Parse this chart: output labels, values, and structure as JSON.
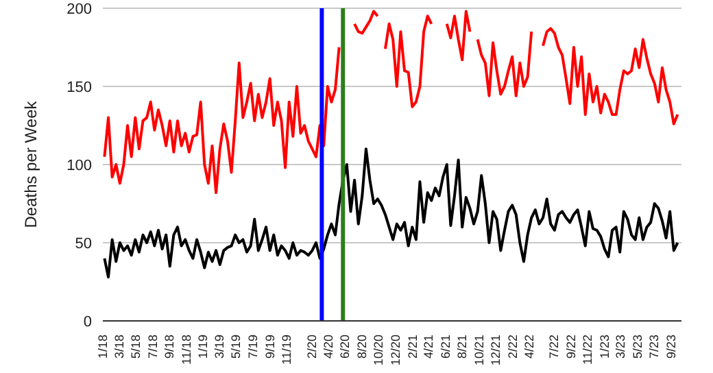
{
  "chart_data": {
    "type": "line",
    "ylabel": "Deaths per Week",
    "ylim": [
      0,
      200
    ],
    "yticks": [
      0,
      50,
      100,
      150,
      200
    ],
    "grid": "y",
    "marker": "none",
    "line_style": "solid",
    "xlim": [
      "2018-01-01",
      "2023-10-08"
    ],
    "xticks": [
      {
        "value": "2018-01-01",
        "label": "1/18"
      },
      {
        "value": "2018-03-01",
        "label": "3/18"
      },
      {
        "value": "2018-05-01",
        "label": "5/18"
      },
      {
        "value": "2018-07-01",
        "label": "7/18"
      },
      {
        "value": "2018-09-01",
        "label": "9/18"
      },
      {
        "value": "2018-11-01",
        "label": "11/18"
      },
      {
        "value": "2019-01-01",
        "label": "1/19"
      },
      {
        "value": "2019-03-01",
        "label": "3/19"
      },
      {
        "value": "2019-05-01",
        "label": "5/19"
      },
      {
        "value": "2019-07-01",
        "label": "7/19"
      },
      {
        "value": "2019-09-01",
        "label": "9/19"
      },
      {
        "value": "2019-11-01",
        "label": "11/19"
      },
      {
        "value": "2020-02-01",
        "label": "2/20"
      },
      {
        "value": "2020-04-01",
        "label": "4/20"
      },
      {
        "value": "2020-06-01",
        "label": "6/20"
      },
      {
        "value": "2020-08-01",
        "label": "8/20"
      },
      {
        "value": "2020-10-01",
        "label": "10/20"
      },
      {
        "value": "2020-12-01",
        "label": "12/20"
      },
      {
        "value": "2021-02-01",
        "label": "2/21"
      },
      {
        "value": "2021-04-01",
        "label": "4/21"
      },
      {
        "value": "2021-06-01",
        "label": "6/21"
      },
      {
        "value": "2021-08-01",
        "label": "8/21"
      },
      {
        "value": "2021-10-01",
        "label": "10/21"
      },
      {
        "value": "2021-12-01",
        "label": "12/21"
      },
      {
        "value": "2022-02-01",
        "label": "2/22"
      },
      {
        "value": "2022-04-01",
        "label": "4/22"
      },
      {
        "value": "2022-07-01",
        "label": "7/22"
      },
      {
        "value": "2022-09-01",
        "label": "9/22"
      },
      {
        "value": "2022-11-01",
        "label": "11/22"
      },
      {
        "value": "2023-01-01",
        "label": "1/23"
      },
      {
        "value": "2023-03-01",
        "label": "3/23"
      },
      {
        "value": "2023-05-01",
        "label": "5/23"
      },
      {
        "value": "2023-07-01",
        "label": "7/23"
      },
      {
        "value": "2023-09-01",
        "label": "9/23"
      }
    ],
    "x": [
      "2018-01-07",
      "2018-01-21",
      "2018-02-04",
      "2018-02-18",
      "2018-03-04",
      "2018-03-18",
      "2018-04-01",
      "2018-04-15",
      "2018-04-29",
      "2018-05-13",
      "2018-05-27",
      "2018-06-10",
      "2018-06-24",
      "2018-07-08",
      "2018-07-22",
      "2018-08-05",
      "2018-08-19",
      "2018-09-02",
      "2018-09-16",
      "2018-09-30",
      "2018-10-14",
      "2018-10-28",
      "2018-11-11",
      "2018-11-25",
      "2018-12-09",
      "2018-12-23",
      "2019-01-06",
      "2019-01-20",
      "2019-02-03",
      "2019-02-17",
      "2019-03-03",
      "2019-03-17",
      "2019-03-31",
      "2019-04-14",
      "2019-04-28",
      "2019-05-12",
      "2019-05-26",
      "2019-06-09",
      "2019-06-23",
      "2019-07-07",
      "2019-07-21",
      "2019-08-04",
      "2019-08-18",
      "2019-09-01",
      "2019-09-15",
      "2019-09-29",
      "2019-10-13",
      "2019-10-27",
      "2019-11-10",
      "2019-11-24",
      "2019-12-08",
      "2019-12-22",
      "2020-01-05",
      "2020-01-19",
      "2020-02-02",
      "2020-02-16",
      "2020-03-01",
      "2020-03-15",
      "2020-03-29",
      "2020-04-12",
      "2020-04-26",
      "2020-05-10",
      "2020-05-24",
      "2020-06-07",
      "2020-06-21",
      "2020-07-05",
      "2020-07-19",
      "2020-08-02",
      "2020-08-16",
      "2020-08-30",
      "2020-09-13",
      "2020-09-27",
      "2020-10-11",
      "2020-10-25",
      "2020-11-08",
      "2020-11-22",
      "2020-12-06",
      "2020-12-20",
      "2021-01-03",
      "2021-01-17",
      "2021-01-31",
      "2021-02-14",
      "2021-02-28",
      "2021-03-14",
      "2021-03-28",
      "2021-04-11",
      "2021-04-25",
      "2021-05-09",
      "2021-05-23",
      "2021-06-06",
      "2021-06-20",
      "2021-07-04",
      "2021-07-18",
      "2021-08-01",
      "2021-08-15",
      "2021-08-29",
      "2021-09-12",
      "2021-09-26",
      "2021-10-10",
      "2021-10-24",
      "2021-11-07",
      "2021-11-21",
      "2021-12-05",
      "2021-12-19",
      "2022-01-02",
      "2022-01-16",
      "2022-01-30",
      "2022-02-13",
      "2022-02-27",
      "2022-03-13",
      "2022-03-27",
      "2022-04-10",
      "2022-04-24",
      "2022-05-08",
      "2022-05-22",
      "2022-06-05",
      "2022-06-19",
      "2022-07-03",
      "2022-07-17",
      "2022-07-31",
      "2022-08-14",
      "2022-08-28",
      "2022-09-11",
      "2022-09-25",
      "2022-10-09",
      "2022-10-23",
      "2022-11-06",
      "2022-11-20",
      "2022-12-04",
      "2022-12-18",
      "2023-01-01",
      "2023-01-15",
      "2023-01-29",
      "2023-02-12",
      "2023-02-26",
      "2023-03-12",
      "2023-03-26",
      "2023-04-09",
      "2023-04-23",
      "2023-05-07",
      "2023-05-21",
      "2023-06-04",
      "2023-06-18",
      "2023-07-02",
      "2023-07-16",
      "2023-07-30",
      "2023-08-13",
      "2023-08-27",
      "2023-09-10",
      "2023-09-24"
    ],
    "series": [
      {
        "color": "#ff0000",
        "values": [
          105,
          130,
          92,
          100,
          88,
          100,
          125,
          105,
          130,
          110,
          128,
          130,
          140,
          122,
          135,
          125,
          112,
          128,
          108,
          128,
          112,
          120,
          108,
          118,
          119,
          140,
          100,
          88,
          112,
          82,
          110,
          126,
          115,
          95,
          128,
          165,
          130,
          140,
          152,
          128,
          145,
          130,
          140,
          155,
          125,
          140,
          128,
          98,
          140,
          118,
          150,
          120,
          125,
          115,
          110,
          105,
          125,
          112,
          150,
          140,
          148,
          175,
          null,
          null,
          null,
          190,
          185,
          184,
          188,
          192,
          198,
          195,
          null,
          174,
          190,
          180,
          150,
          185,
          160,
          159,
          137,
          140,
          150,
          185,
          195,
          190,
          null,
          null,
          null,
          190,
          181,
          195,
          180,
          167,
          198,
          185,
          null,
          180,
          170,
          165,
          144,
          178,
          160,
          145,
          150,
          160,
          169,
          144,
          165,
          150,
          156,
          185,
          null,
          null,
          176,
          185,
          187,
          184,
          175,
          170,
          155,
          139,
          175,
          150,
          169,
          132,
          158,
          140,
          150,
          133,
          145,
          140,
          132,
          132,
          148,
          160,
          158,
          160,
          174,
          162,
          180,
          168,
          158,
          152,
          140,
          162,
          148,
          140,
          126,
          132
        ]
      },
      {
        "color": "#000000",
        "values": [
          40,
          28,
          52,
          38,
          50,
          45,
          48,
          42,
          52,
          44,
          55,
          50,
          57,
          48,
          58,
          46,
          55,
          35,
          55,
          60,
          48,
          52,
          45,
          40,
          52,
          44,
          34,
          44,
          38,
          45,
          36,
          45,
          47,
          48,
          55,
          50,
          52,
          44,
          48,
          65,
          45,
          52,
          60,
          45,
          55,
          42,
          48,
          45,
          40,
          50,
          42,
          45,
          44,
          42,
          45,
          50,
          40,
          46,
          55,
          62,
          55,
          75,
          90,
          100,
          70,
          90,
          62,
          80,
          110,
          90,
          75,
          78,
          74,
          68,
          60,
          52,
          62,
          58,
          63,
          48,
          60,
          52,
          89,
          63,
          82,
          77,
          85,
          80,
          92,
          100,
          61,
          80,
          103,
          60,
          79,
          72,
          62,
          70,
          93,
          75,
          50,
          70,
          65,
          45,
          58,
          70,
          74,
          68,
          50,
          38,
          55,
          66,
          71,
          62,
          66,
          78,
          62,
          58,
          68,
          70,
          66,
          63,
          68,
          71,
          60,
          48,
          70,
          59,
          58,
          54,
          46,
          41,
          58,
          60,
          44,
          70,
          65,
          55,
          52,
          66,
          52,
          60,
          63,
          75,
          72,
          64,
          53,
          70,
          45,
          50
        ]
      }
    ],
    "ref_lines": [
      {
        "axis": "x",
        "value": "2020-03-08",
        "color": "#0000ff"
      },
      {
        "axis": "x",
        "value": "2020-05-24",
        "color": "#2e7d1e"
      }
    ]
  }
}
